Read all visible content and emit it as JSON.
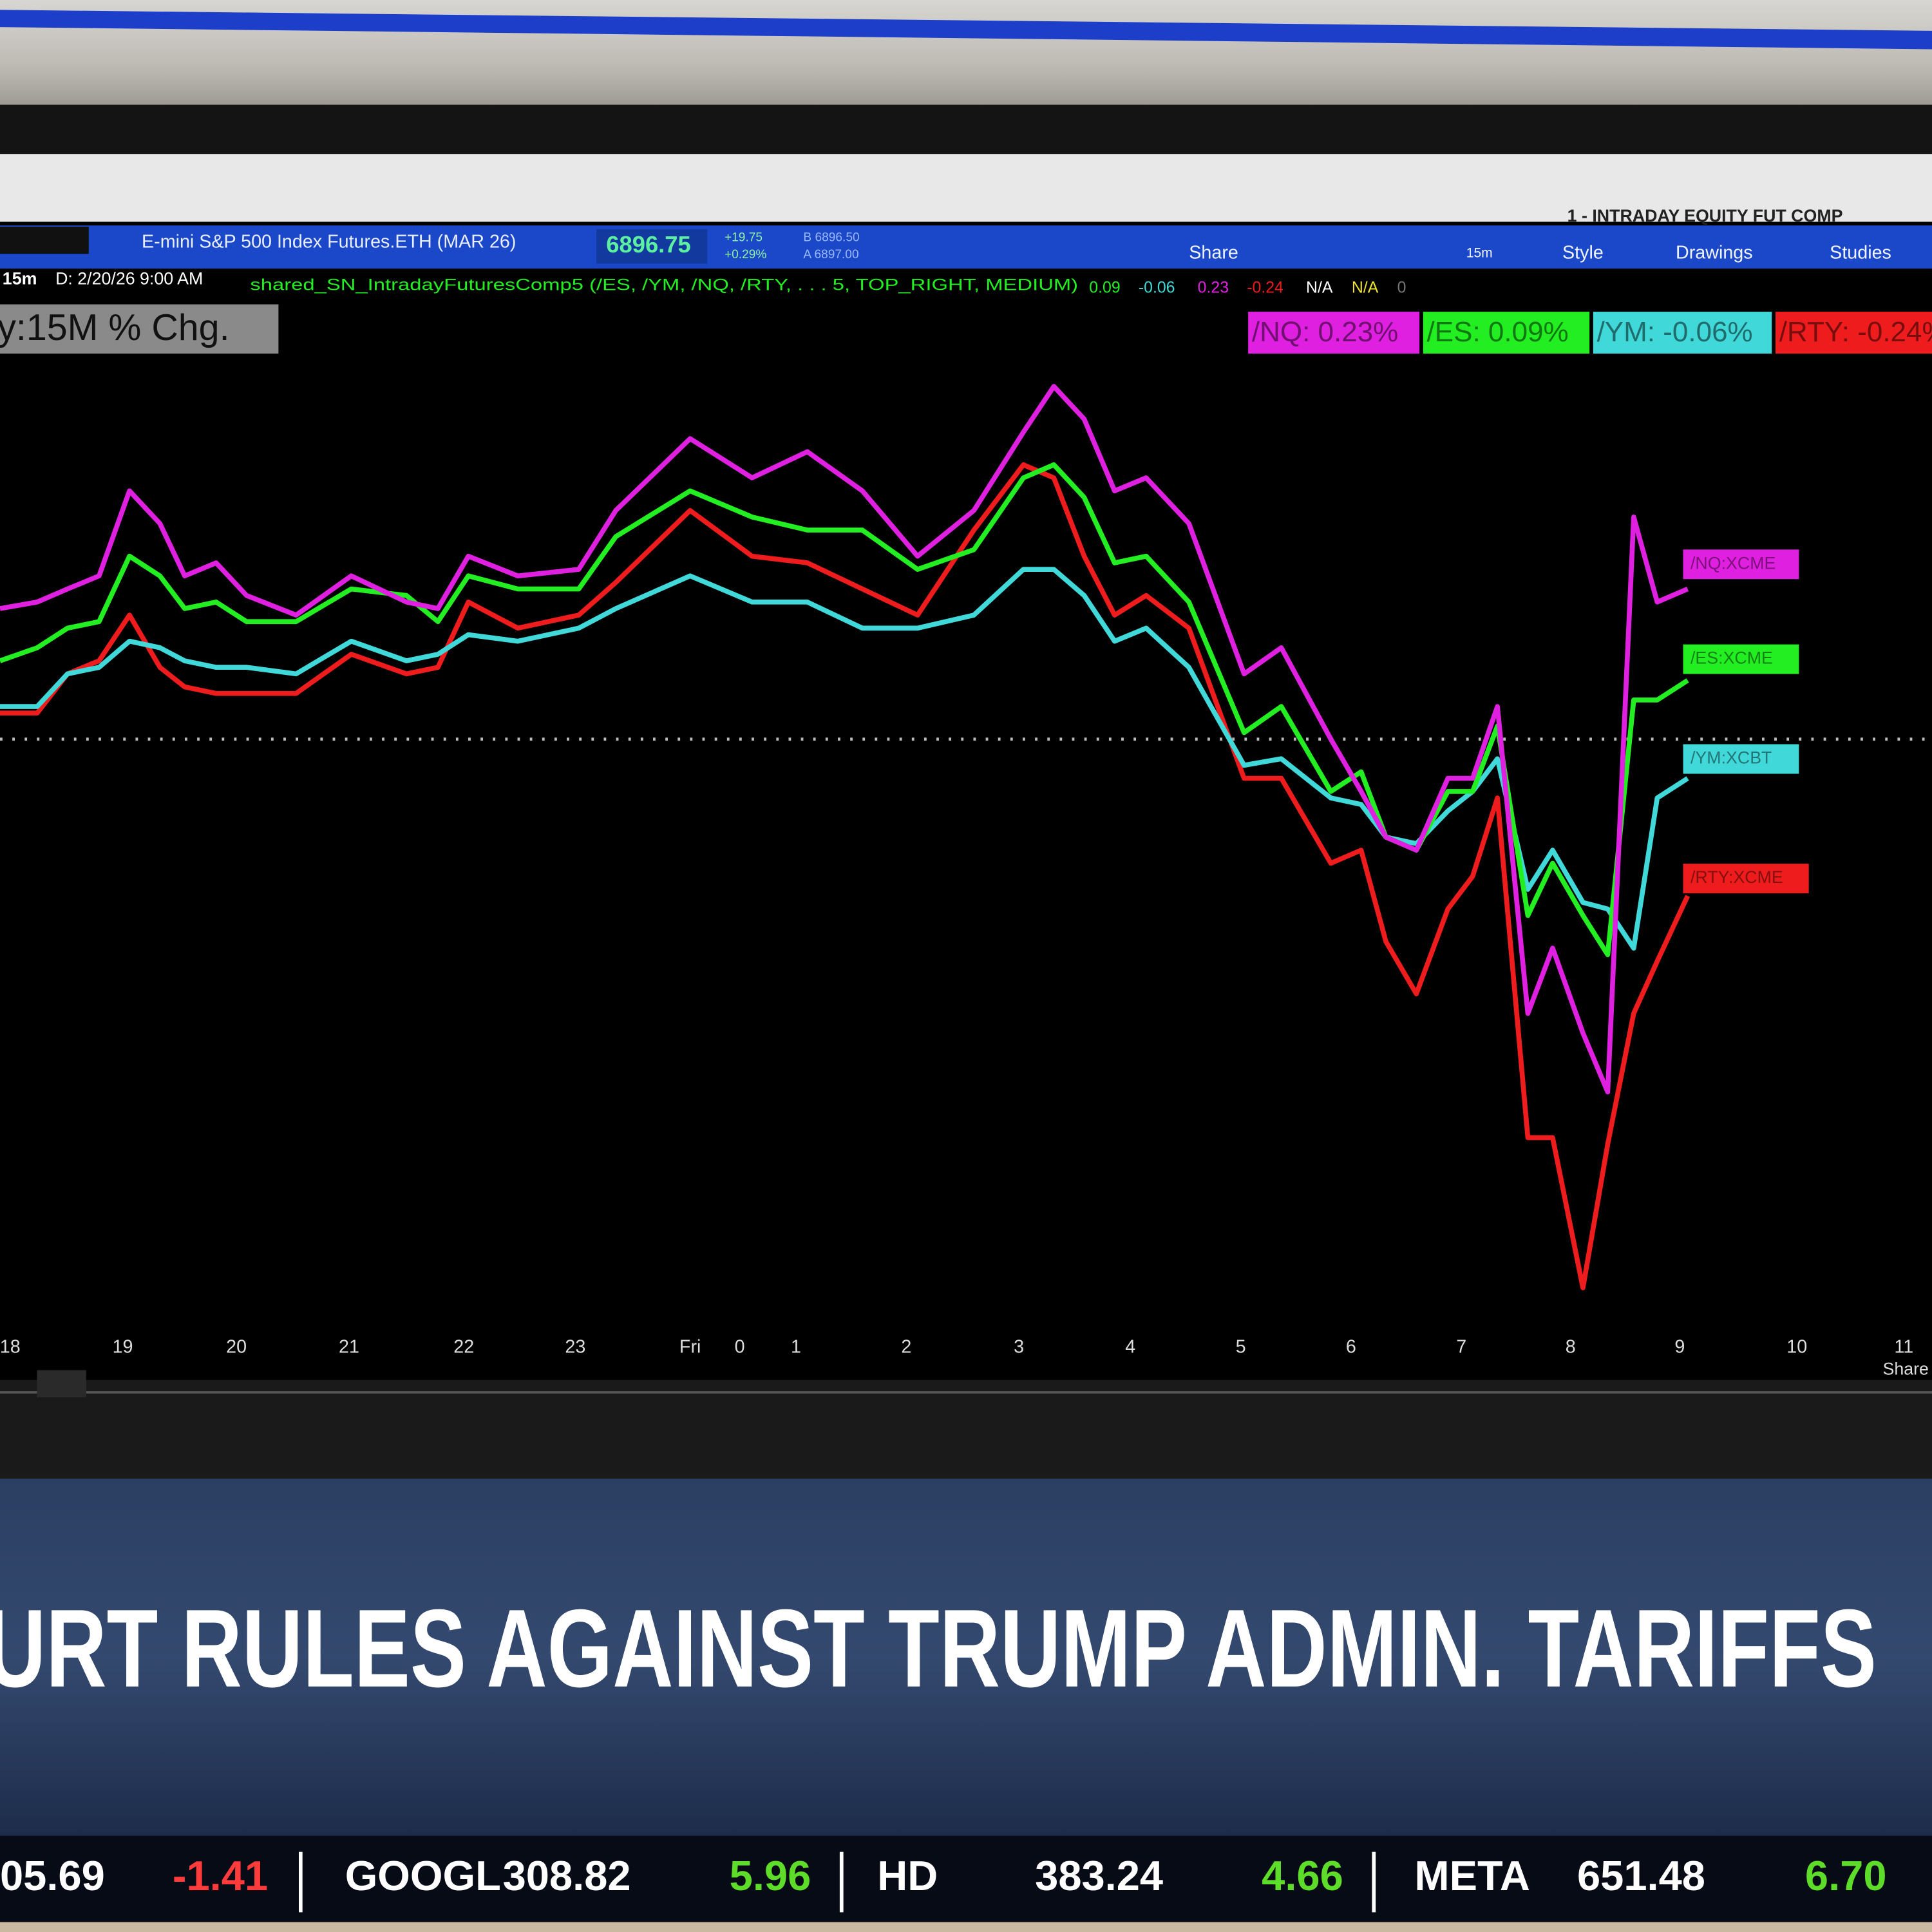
{
  "window": {
    "title": "1 - INTRADAY EQUITY FUT COMP"
  },
  "toolbar": {
    "symbol": "E-mini S&P 500 Index Futures.ETH (MAR 26)",
    "last": "6896.75",
    "change": "+19.75",
    "change_pct": "+0.29%",
    "bid": "B 6896.50",
    "ask": "A 6897.00",
    "buttons": [
      "Share",
      "15m",
      "Style",
      "Drawings",
      "Studies"
    ]
  },
  "study_line": {
    "interval": "15m",
    "date": "D: 2/20/26 9:00 AM",
    "study": "shared_SN_IntradayFuturesComp5 (/ES, /YM, /NQ, /RTY, . . . 5, TOP_RIGHT, MEDIUM)",
    "readings": [
      {
        "text": "0.09",
        "color": "#22ee22"
      },
      {
        "text": "-0.06",
        "color": "#40d8d8"
      },
      {
        "text": "0.23",
        "color": "#e020e0"
      },
      {
        "text": "-0.24",
        "color": "#ee1c1c"
      },
      {
        "text": "N/A",
        "color": "#ffffff"
      },
      {
        "text": "N/A",
        "color": "#f0e030"
      },
      {
        "text": "0",
        "color": "#777777"
      }
    ]
  },
  "chart_data": {
    "type": "line",
    "y_label": "y:15M % Chg.",
    "x": [
      -0.09,
      0.24,
      0.51,
      0.79,
      1.06,
      1.33,
      1.55,
      1.83,
      2.1,
      2.54,
      3.03,
      3.52,
      3.8,
      4.07,
      4.51,
      5.05,
      5.38,
      6.04,
      6.59,
      7.08,
      7.57,
      8.06,
      8.56,
      9.0,
      9.27,
      9.54,
      9.81,
      10.09,
      10.47,
      10.96,
      11.29,
      11.73,
      12.0,
      12.22,
      12.49,
      12.77,
      12.99,
      13.21,
      13.48,
      13.7,
      13.97,
      14.19,
      14.42,
      14.63,
      14.9
    ],
    "series": [
      {
        "name": "/NQ:XCME",
        "legend_label": "/NQ: 0.23%",
        "color": "#e020e0",
        "values": [
          0.2,
          0.21,
          0.23,
          0.25,
          0.38,
          0.33,
          0.25,
          0.27,
          0.22,
          0.19,
          0.25,
          0.21,
          0.2,
          0.28,
          0.25,
          0.26,
          0.35,
          0.46,
          0.4,
          0.44,
          0.38,
          0.28,
          0.35,
          0.47,
          0.54,
          0.49,
          0.38,
          0.4,
          0.33,
          0.1,
          0.14,
          0,
          -0.08,
          -0.15,
          -0.17,
          -0.06,
          -0.06,
          0.05,
          -0.42,
          -0.32,
          -0.45,
          -0.54,
          0.34,
          0.21,
          0.23
        ]
      },
      {
        "name": "/ES:XCME",
        "legend_label": "/ES: 0.09%",
        "color": "#22ee22",
        "values": [
          0.12,
          0.14,
          0.17,
          0.18,
          0.28,
          0.25,
          0.2,
          0.21,
          0.18,
          0.18,
          0.23,
          0.22,
          0.18,
          0.25,
          0.23,
          0.23,
          0.31,
          0.38,
          0.34,
          0.32,
          0.32,
          0.26,
          0.29,
          0.4,
          0.42,
          0.37,
          0.27,
          0.28,
          0.21,
          0.01,
          0.05,
          -0.08,
          -0.05,
          -0.15,
          -0.17,
          -0.08,
          -0.08,
          0.02,
          -0.27,
          -0.19,
          -0.27,
          -0.33,
          0.06,
          0.06,
          0.09
        ]
      },
      {
        "name": "/YM:XCBT",
        "legend_label": "/YM: -0.06%",
        "color": "#40d8d8",
        "values": [
          0.05,
          0.05,
          0.1,
          0.11,
          0.15,
          0.14,
          0.12,
          0.11,
          0.11,
          0.1,
          0.15,
          0.12,
          0.13,
          0.16,
          0.15,
          0.17,
          0.2,
          0.25,
          0.21,
          0.21,
          0.17,
          0.17,
          0.19,
          0.26,
          0.26,
          0.22,
          0.15,
          0.17,
          0.11,
          -0.04,
          -0.03,
          -0.09,
          -0.1,
          -0.15,
          -0.16,
          -0.11,
          -0.08,
          -0.03,
          -0.23,
          -0.17,
          -0.25,
          -0.26,
          -0.32,
          -0.09,
          -0.06
        ]
      },
      {
        "name": "/RTY:XCME",
        "legend_label": "/RTY: -0.24%",
        "color": "#ee1c1c",
        "values": [
          0.04,
          0.04,
          0.1,
          0.12,
          0.19,
          0.11,
          0.08,
          0.07,
          0.07,
          0.07,
          0.13,
          0.1,
          0.11,
          0.21,
          0.17,
          0.19,
          0.24,
          0.35,
          0.28,
          0.27,
          0.23,
          0.19,
          0.32,
          0.42,
          0.4,
          0.28,
          0.19,
          0.22,
          0.17,
          -0.06,
          -0.06,
          -0.19,
          -0.17,
          -0.31,
          -0.39,
          -0.26,
          -0.21,
          -0.09,
          -0.61,
          -0.61,
          -0.84,
          -0.62,
          -0.42,
          -0.34,
          -0.24
        ]
      }
    ],
    "xlim": [
      -0.09,
      17.07
    ],
    "ylim": [
      -0.9,
      0.66
    ],
    "zero_line": 0,
    "xticks": [
      {
        "value": 0,
        "label": "18"
      },
      {
        "value": 1.0,
        "label": "19"
      },
      {
        "value": 2.01,
        "label": "20"
      },
      {
        "value": 3.01,
        "label": "21"
      },
      {
        "value": 4.03,
        "label": "22"
      },
      {
        "value": 5.02,
        "label": "23"
      },
      {
        "value": 6.04,
        "label": "Fri"
      },
      {
        "value": 6.48,
        "label": "0"
      },
      {
        "value": 6.98,
        "label": "1"
      },
      {
        "value": 7.96,
        "label": "2"
      },
      {
        "value": 8.96,
        "label": "3"
      },
      {
        "value": 9.95,
        "label": "4"
      },
      {
        "value": 10.93,
        "label": "5"
      },
      {
        "value": 11.91,
        "label": "6"
      },
      {
        "value": 12.89,
        "label": "7"
      },
      {
        "value": 13.86,
        "label": "8"
      },
      {
        "value": 14.83,
        "label": "9"
      },
      {
        "value": 15.87,
        "label": "10"
      },
      {
        "value": 16.82,
        "label": "11"
      }
    ]
  },
  "footer_button": "Share",
  "headline": "URT RULES AGAINST TRUMP ADMIN. TARIFFS",
  "ticker": [
    {
      "price": "05.69",
      "change": "-1.41",
      "color": "#ff3b3b"
    },
    {
      "symbol": "GOOGL",
      "price": "308.82",
      "change": "5.96",
      "color": "#5ddc2a"
    },
    {
      "symbol": "HD",
      "price": "383.24",
      "change": "4.66",
      "color": "#5ddc2a"
    },
    {
      "symbol": "META",
      "price": "651.48",
      "change": "6.70",
      "color": "#5ddc2a"
    }
  ]
}
